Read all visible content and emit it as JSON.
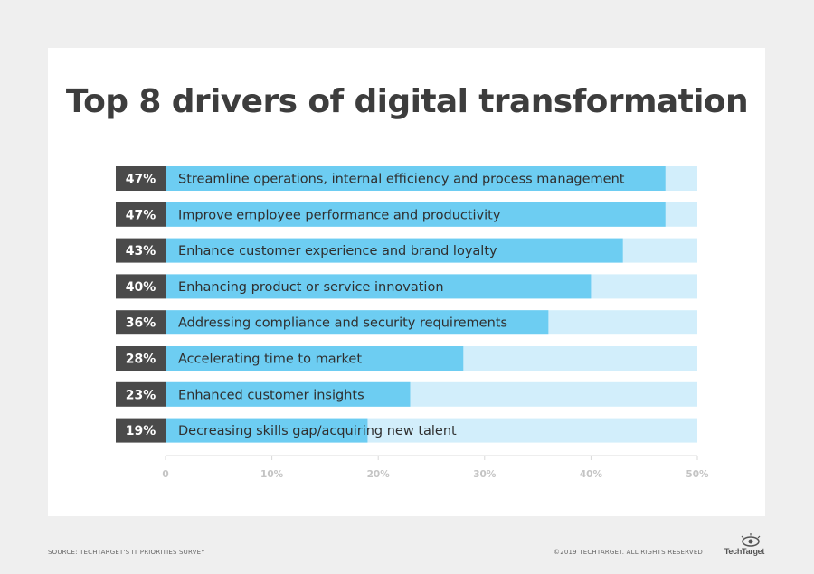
{
  "title": "Top 8 drivers of digital transformation",
  "footer": {
    "source": "SOURCE: TECHTARGET'S IT PRIORITIES SURVEY",
    "copyright": "©2019 TECHTARGET. ALL RIGHTS RESERVED",
    "brand": "TechTarget"
  },
  "colors": {
    "bar": "#6dcdf2",
    "track": "#d2eefb",
    "label_box": "#4a4a4a",
    "title": "#3d3d3d"
  },
  "chart_data": {
    "type": "bar",
    "orientation": "horizontal",
    "categories": [
      "Streamline operations, internal efficiency and process management",
      "Improve employee performance and productivity",
      "Enhance customer experience and brand loyalty",
      "Enhancing product or service innovation",
      "Addressing compliance and security requirements",
      "Accelerating time to market",
      "Enhanced customer insights",
      "Decreasing skills gap/acquiring new talent"
    ],
    "values": [
      47,
      47,
      43,
      40,
      36,
      28,
      23,
      19
    ],
    "value_labels": [
      "47%",
      "47%",
      "43%",
      "40%",
      "36%",
      "28%",
      "23%",
      "19%"
    ],
    "xlim": [
      0,
      50
    ],
    "xticks": [
      0,
      10,
      20,
      30,
      40,
      50
    ],
    "xtick_labels": [
      "0",
      "10%",
      "20%",
      "30%",
      "40%",
      "50%"
    ],
    "grid": false
  }
}
